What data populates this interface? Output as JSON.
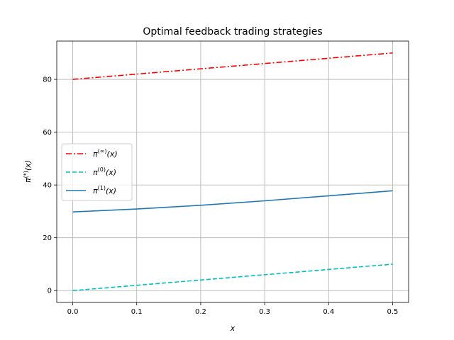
{
  "chart_data": {
    "type": "line",
    "title": "Optimal feedback trading strategies",
    "xlabel": "x",
    "ylabel": "π(*)(x)",
    "ylabel_base": "π",
    "ylabel_sup": "(*)",
    "ylabel_arg": "(x)",
    "xlim": [
      -0.025,
      0.525
    ],
    "ylim": [
      -4.5,
      94.5
    ],
    "xticks": [
      0.0,
      0.1,
      0.2,
      0.3,
      0.4,
      0.5
    ],
    "xtick_labels": [
      "0.0",
      "0.1",
      "0.2",
      "0.3",
      "0.4",
      "0.5"
    ],
    "yticks": [
      0,
      20,
      40,
      60,
      80
    ],
    "ytick_labels": [
      "0",
      "20",
      "40",
      "60",
      "80"
    ],
    "grid": true,
    "legend_position": "center-left",
    "series": [
      {
        "name": "π(∞)(x)",
        "label_base": "π",
        "label_sup": "(∞)",
        "label_arg": "(x)",
        "color": "#ff0000",
        "dash": "dashdot",
        "x": [
          0.0,
          0.1,
          0.2,
          0.3,
          0.4,
          0.5
        ],
        "y": [
          80,
          82,
          84,
          86,
          88,
          90
        ]
      },
      {
        "name": "π(0)(x)",
        "label_base": "π",
        "label_sup": "(0)",
        "label_arg": "(x)",
        "color": "#00bfbf",
        "dash": "dashed",
        "x": [
          0.0,
          0.1,
          0.2,
          0.3,
          0.4,
          0.5
        ],
        "y": [
          0,
          2,
          4,
          6,
          8,
          10
        ]
      },
      {
        "name": "π(1)(x)",
        "label_base": "π",
        "label_sup": "(1)",
        "label_arg": "(x)",
        "color": "#1f77b4",
        "dash": "solid",
        "x": [
          0.0,
          0.1,
          0.2,
          0.3,
          0.4,
          0.5
        ],
        "y": [
          29.8,
          30.9,
          32.3,
          34.0,
          35.9,
          37.8
        ]
      }
    ]
  }
}
